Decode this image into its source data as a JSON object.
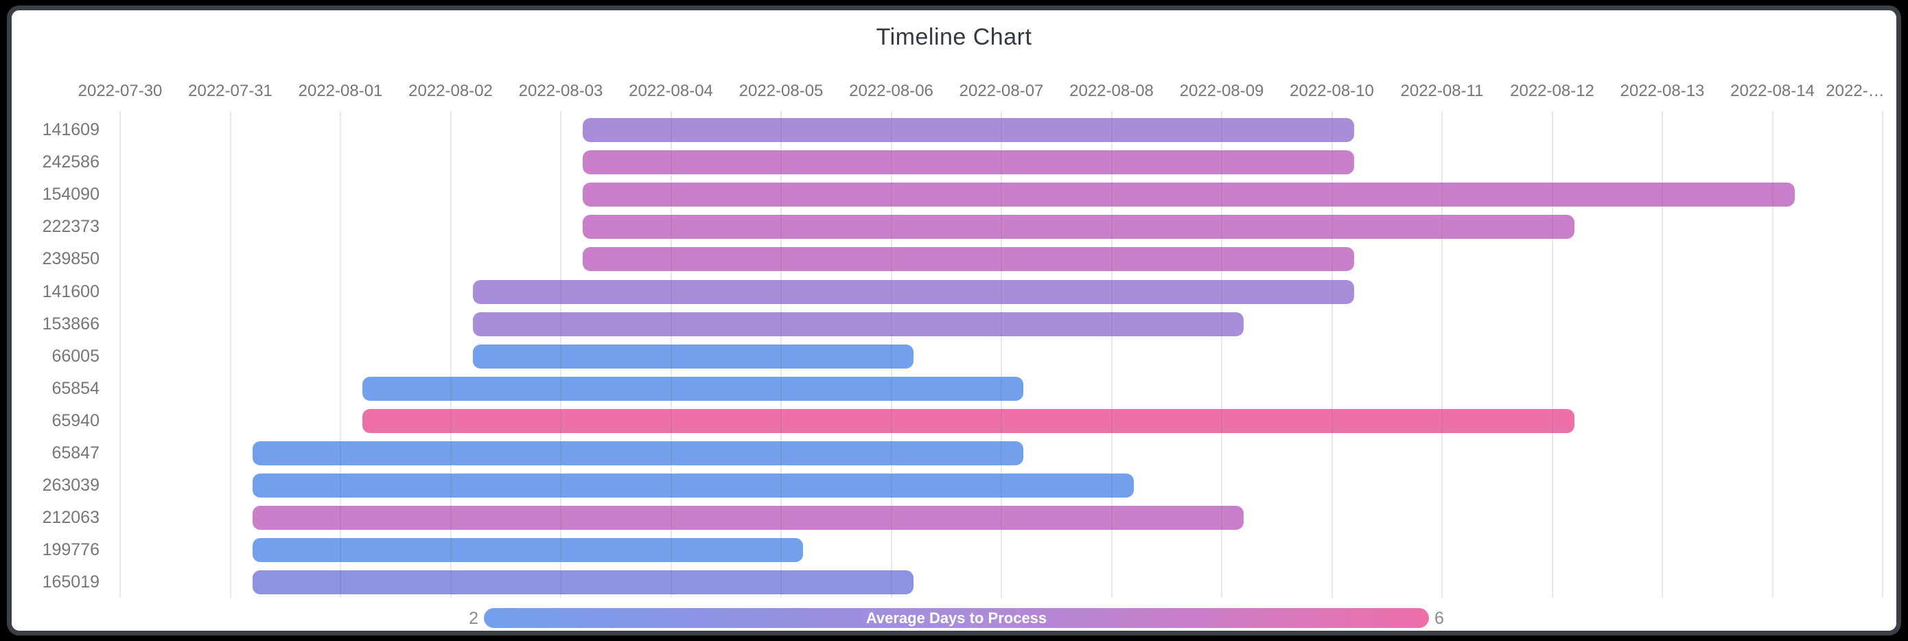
{
  "frame": {
    "background_color": "#000000",
    "card_background_color": "#ffffff",
    "card_border_color": "#3a4046"
  },
  "chart": {
    "title": "Timeline Chart",
    "title_color": "#323940",
    "axis_label_color": "#767676",
    "gridline_color": "rgba(110,110,110,0.16)"
  },
  "colorbar": {
    "title": "Average Days to Process",
    "min_label": "2",
    "max_label": "6",
    "text_color": "#ffffff",
    "endpoint_label_color": "#8a8a8a",
    "gradient_stops": [
      "#72a0ec",
      "#8e92e3",
      "#a98dda",
      "#ca7fca",
      "#ef6fa9"
    ]
  },
  "chart_data": {
    "type": "bar",
    "subtype": "gantt-timeline",
    "title": "Timeline Chart",
    "orientation": "horizontal",
    "grid": "vertical-daily",
    "legend_position": "bottom-colorbar",
    "x": {
      "start_date": "2022-07-30",
      "tick_interval_days": 1,
      "tick_labels": [
        "2022-07-30",
        "2022-07-31",
        "2022-08-01",
        "2022-08-02",
        "2022-08-03",
        "2022-08-04",
        "2022-08-05",
        "2022-08-06",
        "2022-08-07",
        "2022-08-08",
        "2022-08-09",
        "2022-08-10",
        "2022-08-11",
        "2022-08-12",
        "2022-08-13",
        "2022-08-14",
        "2022-…"
      ]
    },
    "y_categories": [
      "141609",
      "242586",
      "154090",
      "222373",
      "239850",
      "141600",
      "153866",
      "66005",
      "65854",
      "65940",
      "65847",
      "263039",
      "212063",
      "199776",
      "165019"
    ],
    "colorbar": {
      "label": "Average Days to Process",
      "min": 2,
      "max": 6
    },
    "value_colors": {
      "2": "#72a0ec",
      "3": "#8e92e3",
      "4": "#a98dda",
      "5": "#ca7fca",
      "6": "#ef6fa9"
    },
    "tasks": [
      {
        "label": "141609",
        "start": "2022-08-03",
        "end": "2022-08-10",
        "start_day_index": 4,
        "duration_days": 7,
        "avg_days_to_process": 4,
        "color": "#a98dda"
      },
      {
        "label": "242586",
        "start": "2022-08-03",
        "end": "2022-08-10",
        "start_day_index": 4,
        "duration_days": 7,
        "avg_days_to_process": 5,
        "color": "#ca7fca"
      },
      {
        "label": "154090",
        "start": "2022-08-03",
        "end": "2022-08-14",
        "start_day_index": 4,
        "duration_days": 11,
        "avg_days_to_process": 5,
        "color": "#ca7fca"
      },
      {
        "label": "222373",
        "start": "2022-08-03",
        "end": "2022-08-12",
        "start_day_index": 4,
        "duration_days": 9,
        "avg_days_to_process": 5,
        "color": "#ca7fca"
      },
      {
        "label": "239850",
        "start": "2022-08-03",
        "end": "2022-08-10",
        "start_day_index": 4,
        "duration_days": 7,
        "avg_days_to_process": 5,
        "color": "#ca7fca"
      },
      {
        "label": "141600",
        "start": "2022-08-02",
        "end": "2022-08-10",
        "start_day_index": 3,
        "duration_days": 8,
        "avg_days_to_process": 4,
        "color": "#a98dda"
      },
      {
        "label": "153866",
        "start": "2022-08-02",
        "end": "2022-08-09",
        "start_day_index": 3,
        "duration_days": 7,
        "avg_days_to_process": 4,
        "color": "#a98dda"
      },
      {
        "label": "66005",
        "start": "2022-08-02",
        "end": "2022-08-06",
        "start_day_index": 3,
        "duration_days": 4,
        "avg_days_to_process": 2,
        "color": "#72a0ec"
      },
      {
        "label": "65854",
        "start": "2022-08-01",
        "end": "2022-08-07",
        "start_day_index": 2,
        "duration_days": 6,
        "avg_days_to_process": 2,
        "color": "#72a0ec"
      },
      {
        "label": "65940",
        "start": "2022-08-01",
        "end": "2022-08-12",
        "start_day_index": 2,
        "duration_days": 11,
        "avg_days_to_process": 6,
        "color": "#ef6fa9"
      },
      {
        "label": "65847",
        "start": "2022-07-31",
        "end": "2022-08-07",
        "start_day_index": 1,
        "duration_days": 7,
        "avg_days_to_process": 2,
        "color": "#72a0ec"
      },
      {
        "label": "263039",
        "start": "2022-07-31",
        "end": "2022-08-08",
        "start_day_index": 1,
        "duration_days": 8,
        "avg_days_to_process": 2,
        "color": "#72a0ec"
      },
      {
        "label": "212063",
        "start": "2022-07-31",
        "end": "2022-08-09",
        "start_day_index": 1,
        "duration_days": 9,
        "avg_days_to_process": 5,
        "color": "#ca7fca"
      },
      {
        "label": "199776",
        "start": "2022-07-31",
        "end": "2022-08-05",
        "start_day_index": 1,
        "duration_days": 5,
        "avg_days_to_process": 2,
        "color": "#72a0ec"
      },
      {
        "label": "165019",
        "start": "2022-07-31",
        "end": "2022-08-06",
        "start_day_index": 1,
        "duration_days": 6,
        "avg_days_to_process": 3,
        "color": "#8e92e3"
      }
    ]
  }
}
